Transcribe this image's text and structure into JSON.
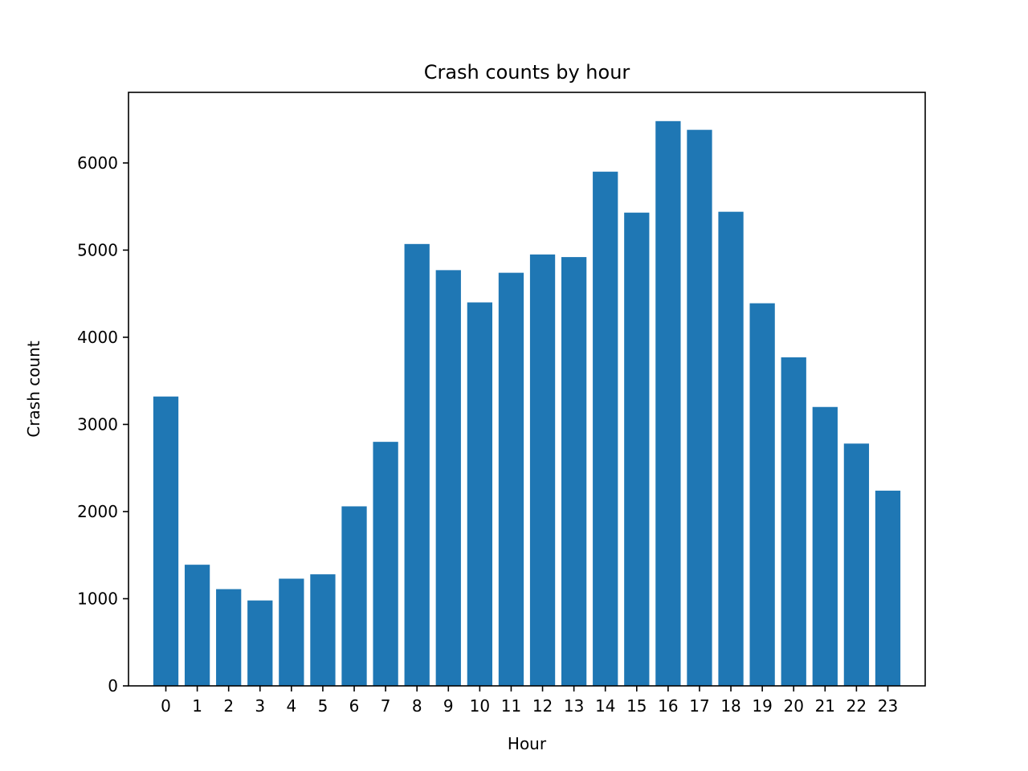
{
  "chart_data": {
    "type": "bar",
    "title": "Crash counts by hour",
    "xlabel": "Hour",
    "ylabel": "Crash count",
    "categories": [
      "0",
      "1",
      "2",
      "3",
      "4",
      "5",
      "6",
      "7",
      "8",
      "9",
      "10",
      "11",
      "12",
      "13",
      "14",
      "15",
      "16",
      "17",
      "18",
      "19",
      "20",
      "21",
      "22",
      "23"
    ],
    "values": [
      3320,
      1390,
      1110,
      980,
      1230,
      1280,
      2060,
      2800,
      5070,
      4770,
      4400,
      4740,
      4950,
      4920,
      5900,
      5430,
      6480,
      6380,
      5440,
      4390,
      3770,
      3200,
      2780,
      2240
    ],
    "ylim": [
      0,
      6810
    ],
    "yticks": [
      0,
      1000,
      2000,
      3000,
      4000,
      5000,
      6000
    ],
    "bar_color": "#1f77b4",
    "grid": false
  }
}
